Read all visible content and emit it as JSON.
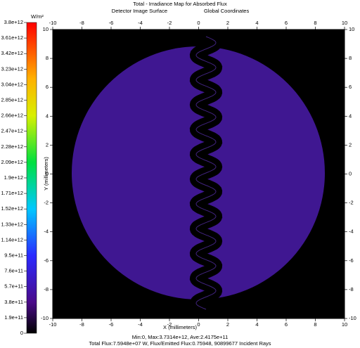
{
  "chart_data": {
    "type": "heatmap",
    "title": "Total - Irradiance Map for Absorbed Flux",
    "subtitle": "Detector Image Surface",
    "coordinates": "Global Coordinates",
    "xlabel": "X (millimeters)",
    "ylabel": "Y (millimeters)",
    "xlim": [
      -10,
      10
    ],
    "ylim": [
      -10,
      10
    ],
    "xticks": [
      -10,
      -8,
      -6,
      -4,
      -2,
      0,
      2,
      4,
      6,
      8,
      10
    ],
    "yticks": [
      -10,
      -8,
      -6,
      -4,
      -2,
      0,
      2,
      4,
      6,
      8,
      10
    ],
    "colorbar": {
      "label": "W/m²",
      "lim": [
        0,
        3800000000000.0
      ],
      "ticks": [
        {
          "value": 3800000000000.0,
          "label": "3.8e+12"
        },
        {
          "value": 3610000000000.0,
          "label": "3.61e+12"
        },
        {
          "value": 3420000000000.0,
          "label": "3.42e+12"
        },
        {
          "value": 3230000000000.0,
          "label": "3.23e+12"
        },
        {
          "value": 3040000000000.0,
          "label": "3.04e+12"
        },
        {
          "value": 2850000000000.0,
          "label": "2.85e+12"
        },
        {
          "value": 2660000000000.0,
          "label": "2.66e+12"
        },
        {
          "value": 2470000000000.0,
          "label": "2.47e+12"
        },
        {
          "value": 2280000000000.0,
          "label": "2.28e+12"
        },
        {
          "value": 2090000000000.0,
          "label": "2.09e+12"
        },
        {
          "value": 1900000000000.0,
          "label": "1.9e+12"
        },
        {
          "value": 1710000000000.0,
          "label": "1.71e+12"
        },
        {
          "value": 1520000000000.0,
          "label": "1.52e+12"
        },
        {
          "value": 1330000000000.0,
          "label": "1.33e+12"
        },
        {
          "value": 1140000000000.0,
          "label": "1.14e+12"
        },
        {
          "value": 950000000000.0,
          "label": "9.5e+11"
        },
        {
          "value": 760000000000.0,
          "label": "7.6e+11"
        },
        {
          "value": 570000000000.0,
          "label": "5.7e+11"
        },
        {
          "value": 380000000000.0,
          "label": "3.8e+11"
        },
        {
          "value": 190000000000.0,
          "label": "1.9e+11"
        },
        0
      ]
    },
    "footer": [
      "Min:0, Max:3.7314e+12, Ave:2.4175e+11",
      "Total Flux:7.5948e+07 W, Flux/Emitted Flux:0.75948, 90899677 Incident Rays"
    ]
  }
}
